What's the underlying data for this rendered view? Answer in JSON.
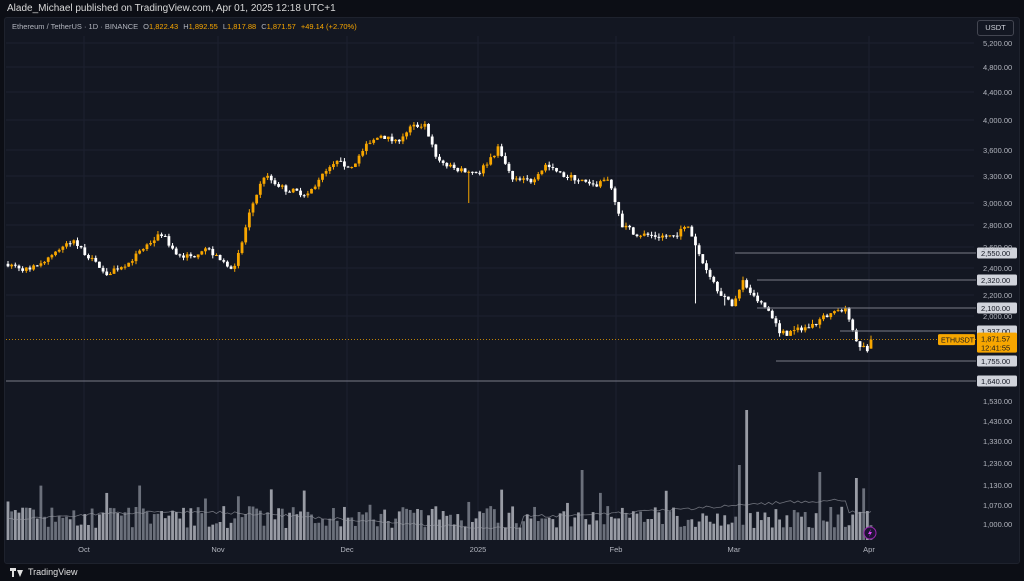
{
  "header": {
    "publisher_text": "Alade_Michael published on TradingView.com, Apr 01, 2025 12:18 UTC+1"
  },
  "legend": {
    "symbol": "Ethereum / TetherUS · 1D · BINANCE",
    "open_label": "O",
    "open": "1,822.43",
    "high_label": "H",
    "high": "1,892.55",
    "low_label": "L",
    "low": "1,817.88",
    "close_label": "C",
    "close": "1,871.57",
    "change": "+49.14 (+2.70%)"
  },
  "currency_button": "USDT",
  "footer": {
    "brand": "TradingView"
  },
  "colors": {
    "up": "#f7a600",
    "down": "#ffffff",
    "background": "#131722",
    "grid": "#1c2030",
    "level_line": "#4a4e5c",
    "price_line": "#f7a600"
  },
  "icons": {
    "alert": "lightning-icon",
    "logo": "tradingview-logo-icon"
  },
  "chart_data": {
    "type": "candlestick",
    "symbol": "ETHUSDT",
    "interval": "1D",
    "x_labels": [
      "Oct",
      "Nov",
      "Dec",
      "2025",
      "Feb",
      "Mar",
      "Apr"
    ],
    "price_axis_labels": [
      "5,200.00",
      "4,800.00",
      "4,400.00",
      "4,000.00",
      "3,600.00",
      "3,300.00",
      "3,000.00",
      "2,800.00",
      "2,600.00",
      "2,400.00",
      "2,200.00",
      "2,000.00"
    ],
    "volume_axis_labels": [
      "1,640.00",
      "1,530.00",
      "1,430.00",
      "1,330.00",
      "1,230.00",
      "1,130.00",
      "1,070.00",
      "1,000.00"
    ],
    "levels": [
      {
        "label": "2,550.00",
        "value": 2550
      },
      {
        "label": "2,320.00",
        "value": 2320
      },
      {
        "label": "2,100.00",
        "value": 2100
      },
      {
        "label": "1,937.00",
        "value": 1937
      },
      {
        "label": "1,755.00",
        "value": 1755
      },
      {
        "label": "1,640.00",
        "value": 1640
      }
    ],
    "last_price": {
      "symbol": "ETHUSDT",
      "value": "1,871.57",
      "countdown": "12:41:55",
      "numeric": 1871.57
    },
    "anchors": [
      [
        0,
        2440
      ],
      [
        6,
        2380
      ],
      [
        14,
        2580
      ],
      [
        18,
        2650
      ],
      [
        24,
        2440
      ],
      [
        27,
        2360
      ],
      [
        33,
        2450
      ],
      [
        38,
        2620
      ],
      [
        42,
        2720
      ],
      [
        46,
        2540
      ],
      [
        50,
        2500
      ],
      [
        54,
        2600
      ],
      [
        58,
        2470
      ],
      [
        62,
        2400
      ],
      [
        66,
        2900
      ],
      [
        70,
        3300
      ],
      [
        76,
        3150
      ],
      [
        82,
        3100
      ],
      [
        86,
        3300
      ],
      [
        90,
        3450
      ],
      [
        94,
        3400
      ],
      [
        98,
        3650
      ],
      [
        102,
        3800
      ],
      [
        106,
        3700
      ],
      [
        110,
        3900
      ],
      [
        114,
        3950
      ],
      [
        117,
        3500
      ],
      [
        121,
        3400
      ],
      [
        125,
        3350
      ],
      [
        129,
        3350
      ],
      [
        134,
        3620
      ],
      [
        138,
        3250
      ],
      [
        143,
        3250
      ],
      [
        147,
        3420
      ],
      [
        151,
        3320
      ],
      [
        156,
        3260
      ],
      [
        160,
        3180
      ],
      [
        164,
        3280
      ],
      [
        168,
        2800
      ],
      [
        172,
        2720
      ],
      [
        177,
        2700
      ],
      [
        182,
        2700
      ],
      [
        186,
        2790
      ],
      [
        190,
        2450
      ],
      [
        194,
        2250
      ],
      [
        198,
        2100
      ],
      [
        201,
        2300
      ],
      [
        204,
        2180
      ],
      [
        208,
        2050
      ],
      [
        211,
        1900
      ],
      [
        216,
        1920
      ],
      [
        220,
        1950
      ],
      [
        225,
        2020
      ],
      [
        229,
        2060
      ],
      [
        232,
        1850
      ],
      [
        235,
        1822
      ],
      [
        236,
        1871
      ]
    ],
    "price_range": [
      1640,
      5200
    ]
  }
}
